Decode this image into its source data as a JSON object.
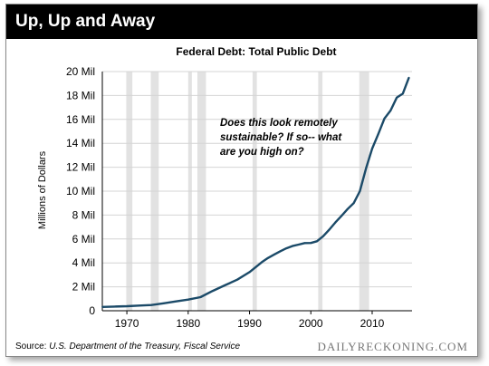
{
  "header": {
    "title": "Up, Up and Away"
  },
  "source": {
    "label": "Source:",
    "text": "U.S. Department of the Treasury, Fiscal Service"
  },
  "watermark": {
    "text": "DAILYRECKONING.COM"
  },
  "colors": {
    "line": "#1b4a68",
    "recession": "#e2e2e2",
    "header_bg": "#000000"
  },
  "chart_data": {
    "type": "line",
    "title": "Federal Debt: Total Public Debt",
    "ylabel": "Millions of Dollars",
    "xlabel": "",
    "xlim": [
      1966,
      2016.5
    ],
    "ylim": [
      0,
      20
    ],
    "yticks": [
      0,
      2,
      4,
      6,
      8,
      10,
      12,
      14,
      16,
      18,
      20
    ],
    "ytick_labels": [
      "0",
      "2 Mil",
      "4 Mil",
      "6 Mil",
      "8 Mil",
      "10 Mil",
      "12 Mil",
      "14 Mil",
      "16 Mil",
      "18 Mil",
      "20 Mil"
    ],
    "xticks": [
      1970,
      1980,
      1990,
      2000,
      2010
    ],
    "xtick_labels": [
      "1970",
      "1980",
      "1990",
      "2000",
      "2010"
    ],
    "grid": "horizontal",
    "annotation": "Does this look remotely sustainable? If so-- what are you high on?",
    "recessions": [
      [
        1969.9,
        1970.9
      ],
      [
        1973.9,
        1975.2
      ],
      [
        1980.0,
        1980.6
      ],
      [
        1981.5,
        1982.9
      ],
      [
        1990.5,
        1991.2
      ],
      [
        2001.2,
        2001.9
      ],
      [
        2007.9,
        2009.5
      ]
    ],
    "series": [
      {
        "values": [
          [
            1966,
            0.32
          ],
          [
            1968,
            0.35
          ],
          [
            1970,
            0.38
          ],
          [
            1972,
            0.43
          ],
          [
            1974,
            0.48
          ],
          [
            1976,
            0.62
          ],
          [
            1978,
            0.78
          ],
          [
            1980,
            0.93
          ],
          [
            1982,
            1.14
          ],
          [
            1984,
            1.66
          ],
          [
            1986,
            2.13
          ],
          [
            1988,
            2.6
          ],
          [
            1990,
            3.23
          ],
          [
            1992,
            4.06
          ],
          [
            1993,
            4.41
          ],
          [
            1994,
            4.69
          ],
          [
            1995,
            4.97
          ],
          [
            1996,
            5.22
          ],
          [
            1997,
            5.41
          ],
          [
            1998,
            5.53
          ],
          [
            1999,
            5.66
          ],
          [
            2000,
            5.67
          ],
          [
            2001,
            5.81
          ],
          [
            2002,
            6.23
          ],
          [
            2003,
            6.78
          ],
          [
            2004,
            7.38
          ],
          [
            2005,
            7.93
          ],
          [
            2006,
            8.51
          ],
          [
            2007,
            9.01
          ],
          [
            2008,
            10.0
          ],
          [
            2009,
            11.9
          ],
          [
            2010,
            13.56
          ],
          [
            2011,
            14.79
          ],
          [
            2012,
            16.07
          ],
          [
            2013,
            16.74
          ],
          [
            2014,
            17.82
          ],
          [
            2015,
            18.15
          ],
          [
            2016,
            19.5
          ]
        ]
      }
    ]
  }
}
